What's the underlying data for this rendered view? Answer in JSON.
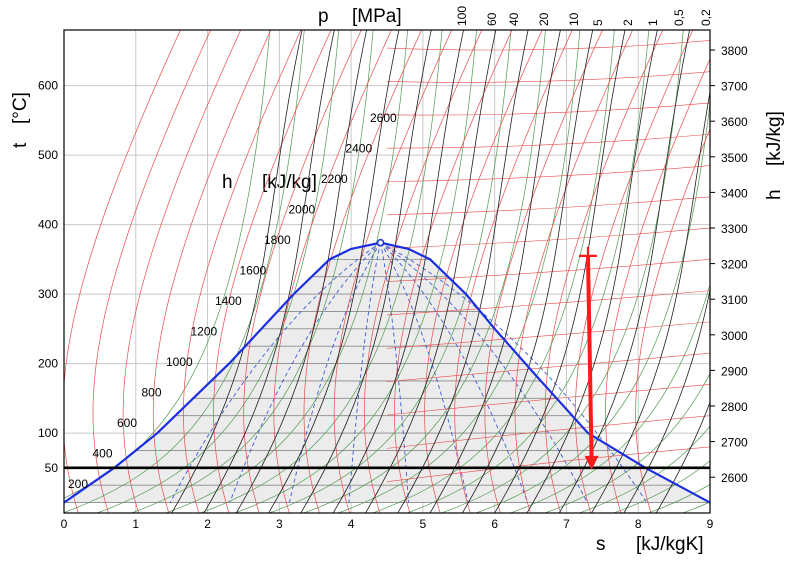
{
  "chart_data": {
    "type": "line",
    "title": "",
    "xlabel": "s",
    "xunit": "[kJ/kgK]",
    "ylabel": "t",
    "yunit": "[°C]",
    "p_label": "p",
    "p_unit": "[MPa]",
    "h_label": "h",
    "h_unit": "[kJ/kg]",
    "h_curve_label": "h",
    "h_curve_unit": "[kJ/kg]",
    "xlim": [
      0,
      9
    ],
    "ylim": [
      -15,
      680
    ],
    "x_ticks": [
      "0",
      "1",
      "2",
      "3",
      "4",
      "5",
      "6",
      "7",
      "8",
      "9"
    ],
    "y_ticks": [
      "600",
      "500",
      "400",
      "300",
      "200",
      "100",
      "50"
    ],
    "right_ticks": [
      "3800",
      "3700",
      "3600",
      "3500",
      "3400",
      "3300",
      "3200",
      "3100",
      "3000",
      "2900",
      "2800",
      "2700",
      "2600"
    ],
    "pressure_ticks": [
      "100",
      "60",
      "40",
      "20",
      "10",
      "5",
      "2",
      "1",
      "0,5",
      "0,2"
    ],
    "enthalpy_labels": [
      "200",
      "400",
      "600",
      "800",
      "1000",
      "1200",
      "1400",
      "1600",
      "1800",
      "2000",
      "2200",
      "2400",
      "2600"
    ],
    "saturation_curve": {
      "liquid": [
        [
          0,
          0
        ],
        [
          0.7,
          50
        ],
        [
          1.3,
          100
        ],
        [
          2.3,
          200
        ],
        [
          3.2,
          300
        ],
        [
          3.7,
          350
        ],
        [
          4.0,
          365
        ],
        [
          4.41,
          374
        ]
      ],
      "vapor": [
        [
          4.41,
          374
        ],
        [
          4.8,
          365
        ],
        [
          5.1,
          350
        ],
        [
          5.6,
          300
        ],
        [
          6.0,
          250
        ],
        [
          6.6,
          180
        ],
        [
          7.3,
          100
        ],
        [
          8.1,
          50
        ],
        [
          9.0,
          0
        ]
      ]
    },
    "critical_point": {
      "s": 4.41,
      "t": 374
    },
    "reference_isotherm_t": 50,
    "expansion_arrow": {
      "start": {
        "s": 7.3,
        "t": 355
      },
      "end": {
        "s": 7.35,
        "t": 50
      }
    }
  }
}
